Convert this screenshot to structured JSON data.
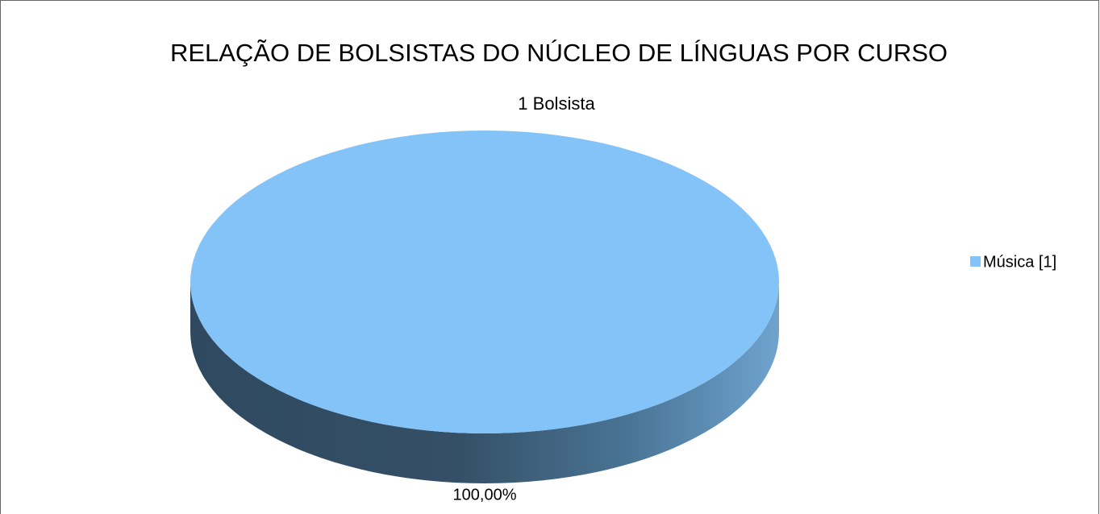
{
  "chart_data": {
    "type": "pie",
    "title": "RELAÇÃO DE BOLSISTAS DO NÚCLEO DE LÍNGUAS POR CURSO",
    "subtitle": "1 Bolsista",
    "categories": [
      "Música [1]"
    ],
    "values": [
      100
    ],
    "value_labels": [
      "100,00%"
    ],
    "colors": [
      "#83c3f7"
    ],
    "legend": "right"
  }
}
